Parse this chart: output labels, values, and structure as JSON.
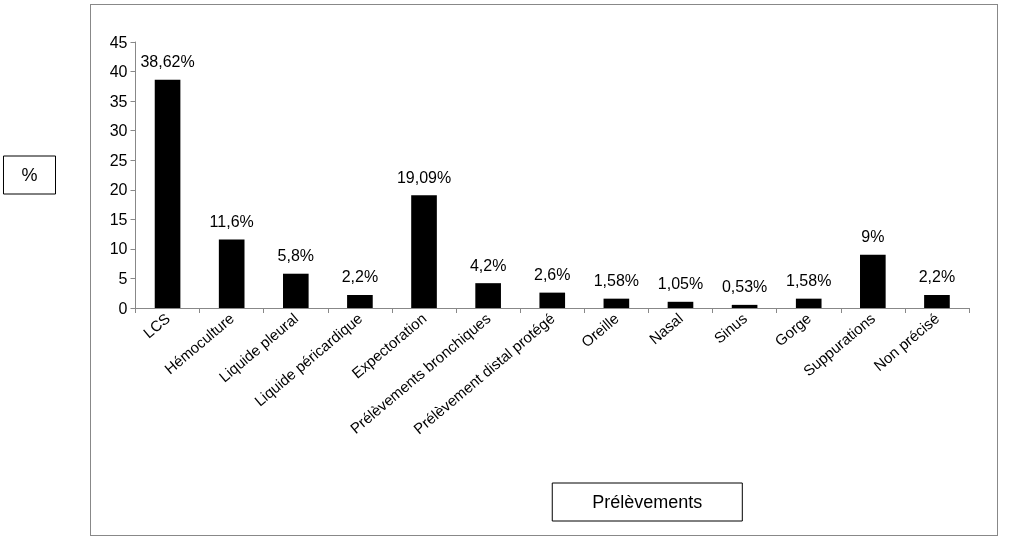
{
  "chart_data": {
    "type": "bar",
    "xlabel": "Prélèvements",
    "ylabel": "%",
    "categories": [
      "LCS",
      "Hémoculture",
      "Liquide pleural",
      "Liquide péricardique",
      "Expectoration",
      "Prélèvements bronchiques",
      "Prélèvement distal protégé",
      "Oreille",
      "Nasal",
      "Sinus",
      "Gorge",
      "Suppurations",
      "Non précisé"
    ],
    "values": [
      38.62,
      11.6,
      5.8,
      2.2,
      19.09,
      4.2,
      2.6,
      1.58,
      1.05,
      0.53,
      1.58,
      9,
      2.2
    ],
    "value_labels": [
      "38,62%",
      "11,6%",
      "5,8%",
      "2,2%",
      "19,09%",
      "4,2%",
      "2,6%",
      "1,58%",
      "1,05%",
      "0,53%",
      "1,58%",
      "9%",
      "2,2%"
    ],
    "color": "#000000",
    "ylim": [
      0,
      45
    ],
    "yticks": [
      0,
      5,
      10,
      15,
      20,
      25,
      30,
      35,
      40,
      45
    ],
    "grid": false
  }
}
